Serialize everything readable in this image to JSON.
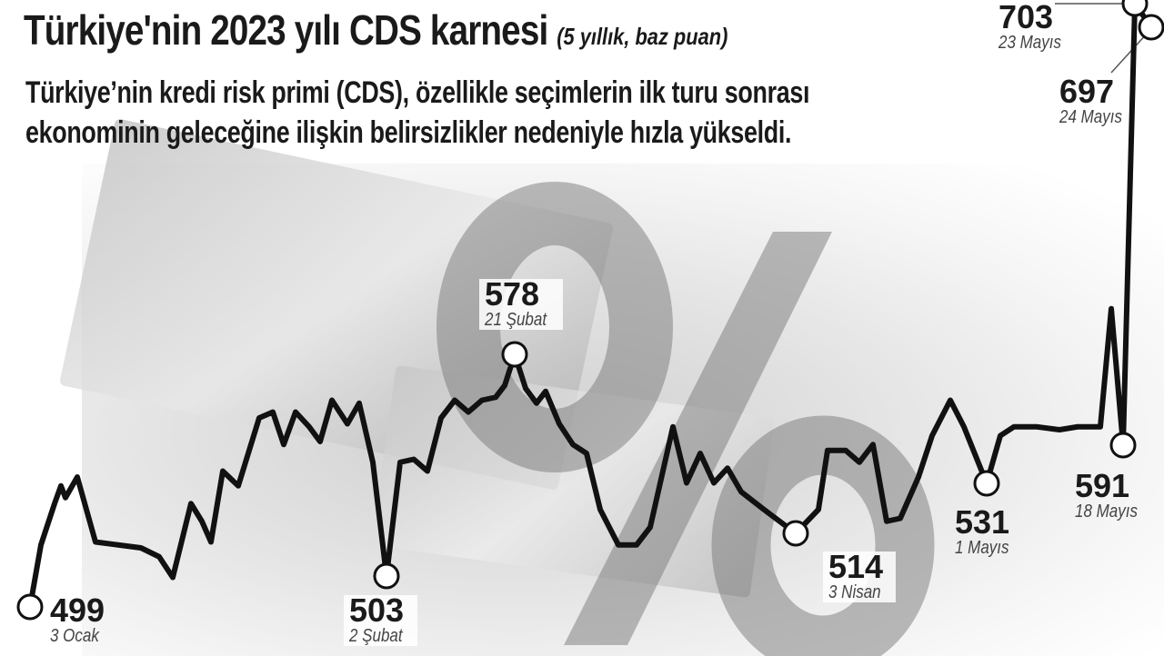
{
  "title": "Türkiye'nin 2023 yılı CDS karnesi",
  "subtitle": "(5 yıllık, baz puan)",
  "description": [
    "Türkiye’nin kredi risk primi (CDS), özellikle seçimlerin ilk turu sonrası",
    "ekonominin geleceğine ilişkin belirsizlikler nedeniyle hızla yükseldi."
  ],
  "chart_data": {
    "type": "line",
    "title": "Türkiye'nin 2023 yılı CDS karnesi",
    "ylabel": "(5 yıllık, baz puan)",
    "grid": false,
    "line_color": "#111111",
    "values": [
      499,
      520,
      534,
      540,
      536,
      543,
      521,
      520,
      519,
      516,
      509,
      534,
      528,
      521,
      545,
      540,
      563,
      565,
      554,
      565,
      560,
      555,
      569,
      561,
      568,
      548,
      503,
      548,
      549,
      545,
      563,
      569,
      565,
      569,
      570,
      574,
      578,
      573,
      568,
      572,
      561,
      554,
      551,
      532,
      520,
      520,
      526,
      560,
      541,
      551,
      541,
      546,
      538,
      532,
      514,
      532,
      552,
      552,
      548,
      554,
      528,
      529,
      543,
      557,
      569,
      560,
      531,
      557,
      560,
      560,
      559,
      560,
      560,
      600,
      591,
      703,
      697
    ],
    "annotations": [
      {
        "value": "499",
        "date": "3 Ocak",
        "index": 0
      },
      {
        "value": "503",
        "date": "2 Şubat",
        "index": 26
      },
      {
        "value": "578",
        "date": "21 Şubat",
        "index": 36
      },
      {
        "value": "514",
        "date": "3 Nisan",
        "index": 54
      },
      {
        "value": "531",
        "date": "1 Mayıs",
        "index": 66
      },
      {
        "value": "591",
        "date": "18 Mayıs",
        "index": 74
      },
      {
        "value": "703",
        "date": "23 Mayıs",
        "index": 75
      },
      {
        "value": "697",
        "date": "24 Mayıs",
        "index": 76
      }
    ]
  }
}
